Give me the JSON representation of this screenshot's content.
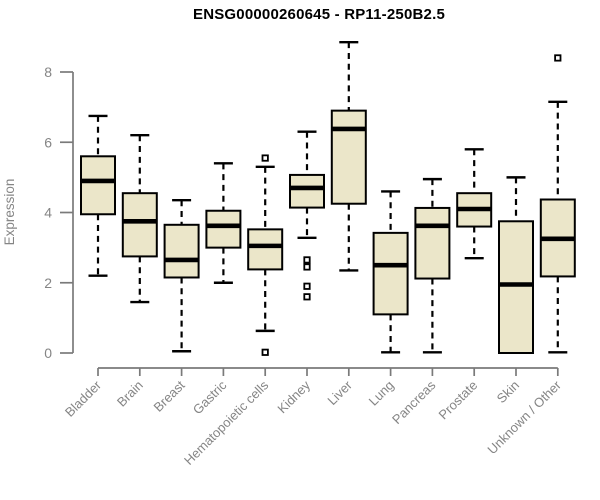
{
  "chart_data": {
    "type": "boxplot",
    "title": "ENSG00000260645 - RP11-250B2.5",
    "ylabel": "Expression",
    "xlabel": "",
    "ylim": [
      0,
      9
    ],
    "yticks": [
      0,
      2,
      4,
      6,
      8
    ],
    "grid": false,
    "legend": false,
    "categories": [
      "Bladder",
      "Brain",
      "Breast",
      "Gastric",
      "Hematopoietic cells",
      "Kidney",
      "Liver",
      "Lung",
      "Pancreas",
      "Prostate",
      "Skin",
      "Unknown / Other"
    ],
    "series": [
      {
        "category": "Bladder",
        "min": 2.2,
        "q1": 3.95,
        "median": 4.9,
        "q3": 5.6,
        "max": 6.75,
        "outliers": []
      },
      {
        "category": "Brain",
        "min": 1.45,
        "q1": 2.75,
        "median": 3.75,
        "q3": 4.55,
        "max": 6.2,
        "outliers": []
      },
      {
        "category": "Breast",
        "min": 0.05,
        "q1": 2.15,
        "median": 2.65,
        "q3": 3.65,
        "max": 4.35,
        "outliers": []
      },
      {
        "category": "Gastric",
        "min": 2.0,
        "q1": 3.0,
        "median": 3.62,
        "q3": 4.05,
        "max": 5.4,
        "outliers": []
      },
      {
        "category": "Hematopoietic cells",
        "min": 0.63,
        "q1": 2.38,
        "median": 3.05,
        "q3": 3.52,
        "max": 5.3,
        "outliers": [
          5.55,
          0.02
        ]
      },
      {
        "category": "Kidney",
        "min": 3.28,
        "q1": 4.14,
        "median": 4.7,
        "q3": 5.07,
        "max": 6.3,
        "outliers": [
          2.65,
          2.45,
          1.9,
          1.6
        ]
      },
      {
        "category": "Liver",
        "min": 2.35,
        "q1": 4.25,
        "median": 6.38,
        "q3": 6.9,
        "max": 8.85,
        "outliers": []
      },
      {
        "category": "Lung",
        "min": 0.02,
        "q1": 1.1,
        "median": 2.5,
        "q3": 3.42,
        "max": 4.6,
        "outliers": []
      },
      {
        "category": "Pancreas",
        "min": 0.02,
        "q1": 2.12,
        "median": 3.62,
        "q3": 4.13,
        "max": 4.95,
        "outliers": []
      },
      {
        "category": "Prostate",
        "min": 2.7,
        "q1": 3.6,
        "median": 4.1,
        "q3": 4.55,
        "max": 5.8,
        "outliers": []
      },
      {
        "category": "Skin",
        "min": 0.0,
        "q1": 0.0,
        "median": 1.95,
        "q3": 3.75,
        "max": 5.0,
        "outliers": []
      },
      {
        "category": "Unknown / Other",
        "min": 0.02,
        "q1": 2.18,
        "median": 3.25,
        "q3": 4.37,
        "max": 7.15,
        "outliers": [
          8.4
        ]
      }
    ],
    "colors": {
      "box_fill": "#EBE6C9",
      "box_stroke": "#000000",
      "median": "#000000",
      "whisker": "#000000",
      "outlier_fill": "#ffffff",
      "axis_line": "#7a7a7a",
      "axis_text": "#858585",
      "title_text": "#000000",
      "background": "#ffffff"
    }
  }
}
